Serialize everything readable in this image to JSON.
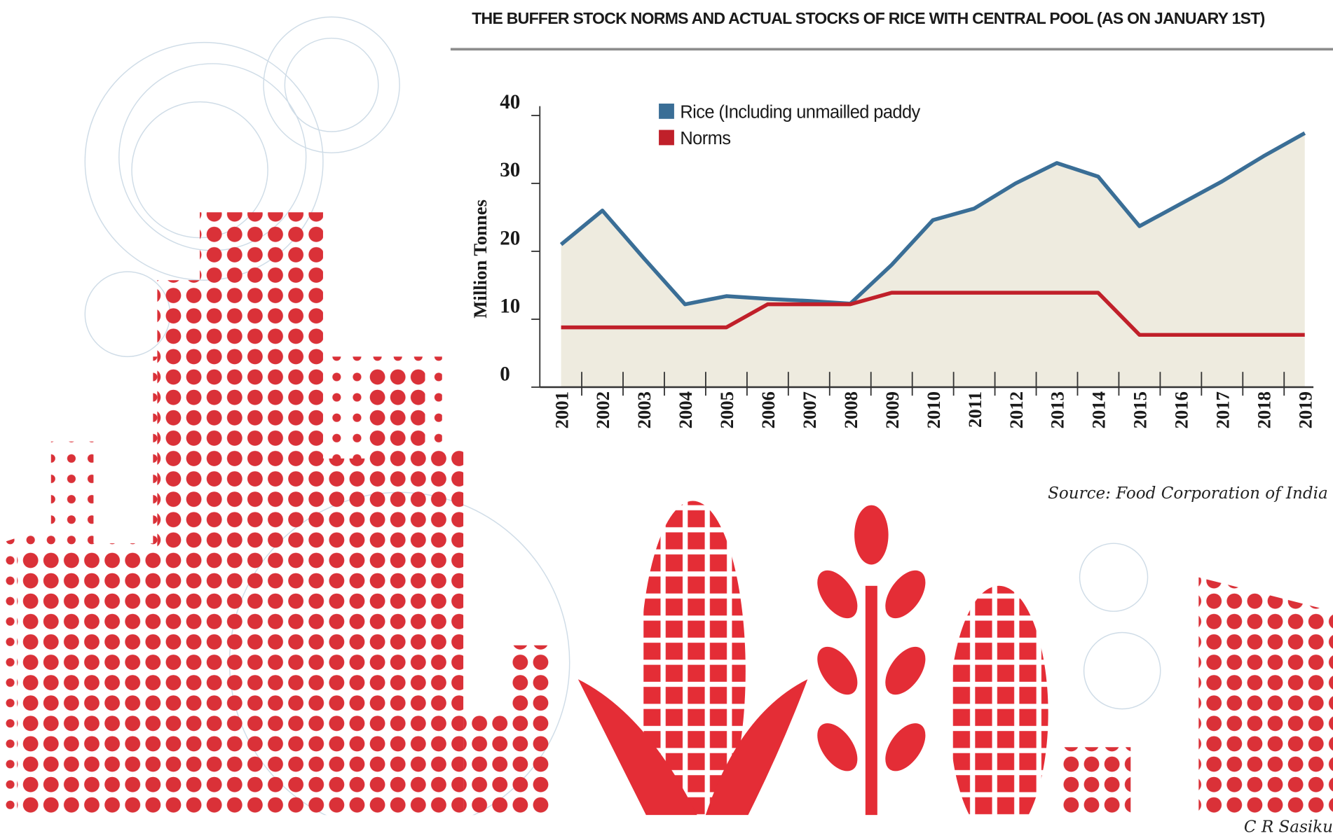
{
  "chart_data": {
    "type": "line",
    "title": "THE BUFFER STOCK NORMS AND ACTUAL STOCKS OF RICE WITH CENTRAL POOL (AS ON JANUARY 1ST)",
    "y_label": "Million Tonnes",
    "categories": [
      "2001",
      "2002",
      "2003",
      "2004",
      "2005",
      "2006",
      "2007",
      "2008",
      "2009",
      "2010",
      "2011",
      "2012",
      "2013",
      "2014",
      "2015",
      "2016",
      "2017",
      "2018",
      "2019"
    ],
    "series": [
      {
        "name": "Rice (Including unmailled paddy",
        "color": "#3a6e96",
        "fill": "#eeebdf",
        "values": [
          21,
          26,
          19,
          12.2,
          13.4,
          13,
          12.7,
          12.3,
          18,
          24.6,
          26.3,
          30,
          33,
          31,
          23.7,
          27,
          30.3,
          34,
          37.4
        ]
      },
      {
        "name": "Norms",
        "color": "#c0202a",
        "values": [
          8.8,
          8.8,
          8.8,
          8.8,
          8.8,
          12.2,
          12.2,
          12.2,
          13.9,
          13.9,
          13.9,
          13.9,
          13.9,
          13.9,
          7.7,
          7.7,
          7.7,
          7.7,
          7.7
        ]
      }
    ],
    "ylim": [
      0,
      40
    ],
    "yticks": [
      0,
      10,
      20,
      30,
      40
    ],
    "source": "Source: Food Corporation of India",
    "credit": "C R Sasiku"
  }
}
